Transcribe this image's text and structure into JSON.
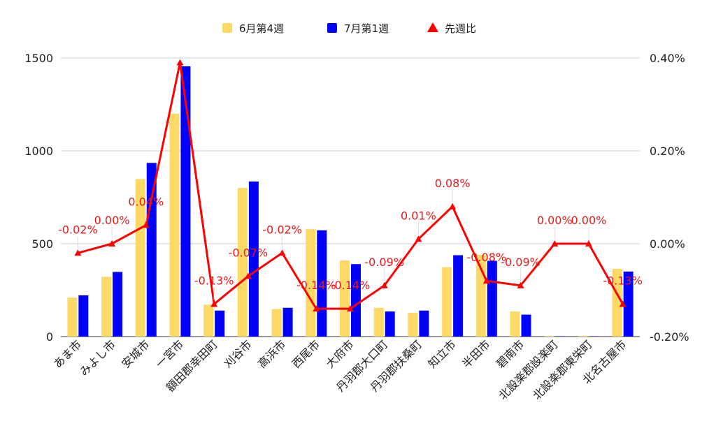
{
  "chart_data": {
    "type": "bar",
    "categories": [
      "あま市",
      "みよし市",
      "安城市",
      "一宮市",
      "額田郡幸田町",
      "刈谷市",
      "高浜市",
      "西尾市",
      "大府市",
      "丹羽郡大口町",
      "丹羽郡扶桑町",
      "知立市",
      "半田市",
      "碧南市",
      "北設楽郡設楽町",
      "北設楽郡東栄町",
      "北名古屋市"
    ],
    "series": [
      {
        "name": "6月第4週",
        "type": "bar",
        "axis": "left",
        "color": "#ffd966",
        "values": [
          210,
          322,
          848,
          1200,
          172,
          800,
          148,
          578,
          410,
          155,
          128,
          373,
          440,
          135,
          3,
          3,
          365
        ]
      },
      {
        "name": "7月第1週",
        "type": "bar",
        "axis": "left",
        "color": "#0000ff",
        "values": [
          222,
          348,
          935,
          1455,
          140,
          835,
          155,
          572,
          390,
          135,
          140,
          438,
          408,
          118,
          2,
          2,
          350
        ]
      },
      {
        "name": "先週比",
        "type": "line",
        "axis": "right",
        "color": "#ff0000",
        "marker": "triangle",
        "values": [
          -0.0002,
          0.0,
          0.0004,
          0.0039,
          -0.0013,
          -0.0007,
          -0.0002,
          -0.0014,
          -0.0014,
          -0.0009,
          0.0001,
          0.0008,
          -0.0008,
          -0.0009,
          0.0,
          0.0,
          -0.0013
        ],
        "labels": [
          "-0.02%",
          "0.00%",
          "0.04%",
          "",
          "-0.13%",
          "-0.07%",
          "-0.02%",
          "-0.14%",
          "-0.14%",
          "-0.09%",
          "0.01%",
          "0.08%",
          "-0.08%",
          "-0.09%",
          "0.00%",
          "0.00%",
          "-0.13%"
        ]
      }
    ],
    "y_left": {
      "ylim": [
        0,
        1500
      ],
      "ticks": [
        "0",
        "500",
        "1000",
        "1500"
      ]
    },
    "y_right": {
      "ylim": [
        -0.002,
        0.004
      ],
      "ticks": [
        "-0.20%",
        "0.00%",
        "0.20%",
        "0.40%"
      ]
    },
    "xlabel": "",
    "ylabel": "",
    "grid": true,
    "legend": "top-center"
  }
}
